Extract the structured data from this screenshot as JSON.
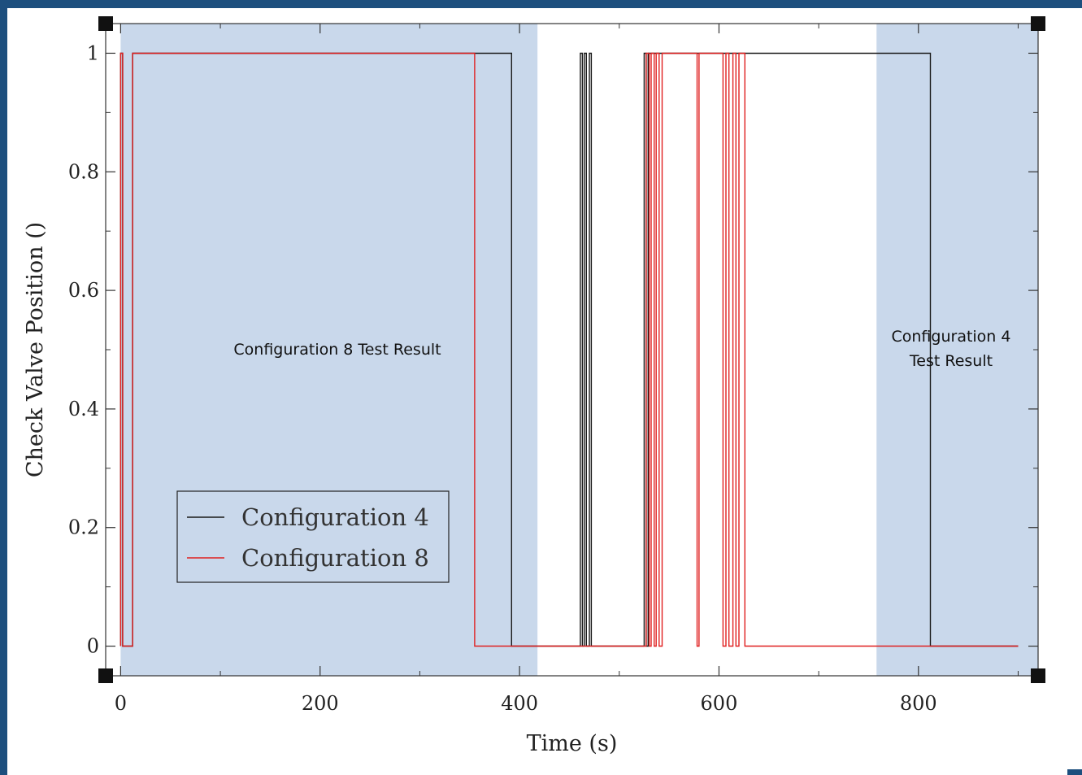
{
  "chart_data": {
    "type": "line",
    "title": "",
    "xlabel": "Time (s)",
    "ylabel": "Check Valve Position ()",
    "xlim": [
      -15,
      920
    ],
    "ylim": [
      -0.05,
      1.05
    ],
    "x_ticks": [
      0,
      200,
      400,
      600,
      800
    ],
    "y_ticks": [
      0,
      0.2,
      0.4,
      0.6,
      0.8,
      1
    ],
    "x_tick_labels": [
      "0",
      "200",
      "400",
      "600",
      "800"
    ],
    "y_tick_labels": [
      "0",
      "0.2",
      "0.4",
      "0.6",
      "0.8",
      "1"
    ],
    "grid": false,
    "legend": {
      "placement": "lower-left",
      "entries": [
        "Configuration 4",
        "Configuration 8"
      ]
    },
    "shaded_regions": [
      {
        "x": [
          0,
          418
        ],
        "color": "#c9d8eb",
        "label": "Configuration 8 Test Result"
      },
      {
        "x": [
          758,
          920
        ],
        "color": "#c9d8eb",
        "label": "Configuration 4\nTest Result"
      }
    ],
    "series": [
      {
        "name": "Configuration 4",
        "color": "#1a1a1a",
        "x": [
          0,
          0,
          2,
          2,
          12,
          12,
          392,
          392,
          461,
          461,
          463,
          463,
          465,
          465,
          467,
          467,
          470,
          470,
          472,
          472,
          525,
          525,
          527,
          527,
          529,
          529,
          531,
          531,
          812,
          812,
          900
        ],
        "y": [
          0,
          1,
          1,
          0,
          0,
          1,
          1,
          0,
          0,
          1,
          1,
          0,
          0,
          1,
          1,
          0,
          0,
          1,
          1,
          0,
          0,
          1,
          1,
          0,
          0,
          1,
          1,
          1,
          1,
          0,
          0
        ]
      },
      {
        "name": "Configuration 8",
        "color": "#e02020",
        "x": [
          0,
          0,
          2,
          2,
          12,
          12,
          355,
          355,
          527,
          527,
          530,
          530,
          532,
          532,
          535,
          535,
          537,
          537,
          540,
          540,
          543,
          543,
          578,
          578,
          580,
          580,
          604,
          604,
          607,
          607,
          610,
          610,
          614,
          614,
          617,
          617,
          620,
          620,
          626,
          626,
          630,
          630,
          900
        ],
        "y": [
          0,
          1,
          1,
          0,
          0,
          1,
          1,
          0,
          0,
          1,
          1,
          0,
          0,
          1,
          1,
          0,
          0,
          1,
          1,
          0,
          0,
          1,
          1,
          0,
          0,
          1,
          1,
          0,
          0,
          1,
          1,
          0,
          0,
          1,
          1,
          0,
          0,
          1,
          1,
          0,
          0,
          0,
          0
        ]
      }
    ]
  }
}
